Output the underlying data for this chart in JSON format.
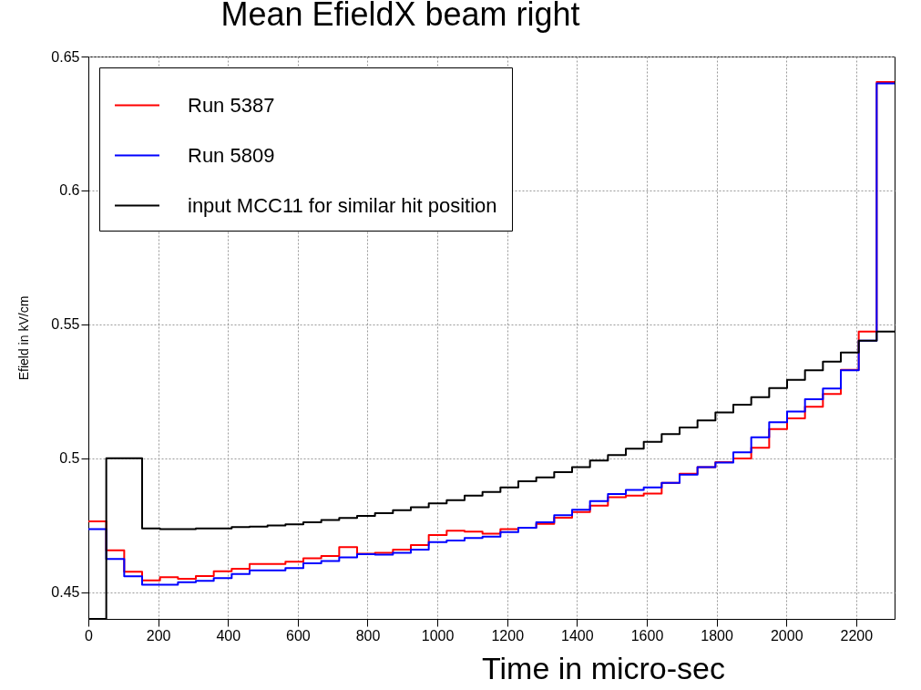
{
  "chart_data": {
    "type": "histogram",
    "title": "Mean EfieldX beam right",
    "xlabel": "Time in micro-sec",
    "ylabel": "Efield in kV/cm",
    "bins": [
      0,
      51.3,
      102.7,
      154,
      205.3,
      256.7,
      308,
      359.3,
      410.7,
      462,
      513.3,
      564.7,
      616,
      667.3,
      718.7,
      770,
      821.3,
      872.7,
      924,
      975.3,
      1026.7,
      1078,
      1129.3,
      1180.7,
      1232,
      1283.3,
      1334.7,
      1386,
      1437.3,
      1488.7,
      1540,
      1591.3,
      1642.7,
      1694,
      1745.3,
      1796.7,
      1848,
      1899.3,
      1950.7,
      2002,
      2053.3,
      2104.7,
      2156,
      2207.3,
      2258.7,
      2310
    ],
    "series": [
      {
        "name": "Run 5387",
        "color": "#ff0000",
        "values": [
          0.4764,
          0.4656,
          0.4576,
          0.4544,
          0.4556,
          0.455,
          0.456,
          0.4578,
          0.4587,
          0.4605,
          0.4605,
          0.4614,
          0.4626,
          0.4635,
          0.4668,
          0.4643,
          0.4647,
          0.4659,
          0.4676,
          0.4713,
          0.4729,
          0.4726,
          0.4718,
          0.4735,
          0.474,
          0.4755,
          0.4778,
          0.4799,
          0.4823,
          0.4854,
          0.486,
          0.4868,
          0.4908,
          0.4942,
          0.4967,
          0.4985,
          0.4999,
          0.5039,
          0.5109,
          0.5149,
          0.5192,
          0.524,
          0.533,
          0.5473,
          0.6405
        ]
      },
      {
        "name": "Run 5809",
        "color": "#0000ff",
        "values": [
          0.4735,
          0.4624,
          0.4559,
          0.4528,
          0.4528,
          0.4537,
          0.4542,
          0.4552,
          0.4568,
          0.4581,
          0.4581,
          0.459,
          0.4608,
          0.4616,
          0.463,
          0.4642,
          0.464,
          0.4647,
          0.4659,
          0.4687,
          0.4693,
          0.4702,
          0.4707,
          0.4724,
          0.474,
          0.4761,
          0.4787,
          0.4808,
          0.484,
          0.4866,
          0.4882,
          0.4891,
          0.4908,
          0.4939,
          0.4967,
          0.4984,
          0.5022,
          0.5078,
          0.5134,
          0.5174,
          0.522,
          0.526,
          0.5328,
          0.5439,
          0.64
        ]
      },
      {
        "name": "input MCC11 for similar hit position",
        "color": "#000000",
        "values": [
          0.44,
          0.5,
          0.5,
          0.4738,
          0.4735,
          0.4735,
          0.4738,
          0.4738,
          0.4743,
          0.4745,
          0.4749,
          0.4753,
          0.4761,
          0.4769,
          0.4777,
          0.4785,
          0.4795,
          0.4806,
          0.4817,
          0.4831,
          0.4843,
          0.486,
          0.4874,
          0.4891,
          0.4914,
          0.4928,
          0.4948,
          0.4967,
          0.4991,
          0.5012,
          0.5036,
          0.5061,
          0.509,
          0.5115,
          0.5141,
          0.5171,
          0.52,
          0.5228,
          0.5262,
          0.5293,
          0.5328,
          0.5361,
          0.5395,
          0.5439,
          0.5473
        ]
      }
    ],
    "xlim": [
      0,
      2310
    ],
    "xticks": [
      0,
      200,
      400,
      600,
      800,
      1000,
      1200,
      1400,
      1600,
      1800,
      2000,
      2200
    ],
    "ylim": [
      0.44,
      0.65
    ],
    "yticks": [
      0.45,
      0.5,
      0.55,
      0.6,
      0.65
    ],
    "grid": true,
    "legend": "top left"
  }
}
